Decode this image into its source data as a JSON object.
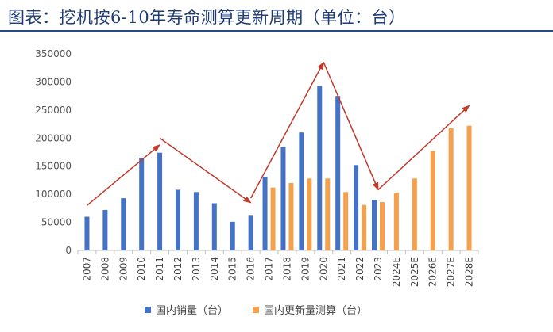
{
  "title": "图表：挖机按6-10年寿命测算更新周期（单位：台）",
  "colors": {
    "domestic": "#4472c4",
    "update": "#f4a04c",
    "arrow": "#c0392b",
    "title": "#1f3b75"
  },
  "chart_data": {
    "type": "bar",
    "categories": [
      "2007",
      "2008",
      "2009",
      "2010",
      "2011",
      "2012",
      "2013",
      "2014",
      "2015",
      "2016",
      "2017",
      "2018",
      "2019",
      "2020",
      "2021",
      "2022",
      "2023",
      "2024E",
      "2025E",
      "2026E",
      "2027E",
      "2028E"
    ],
    "series": [
      {
        "name": "国内销量（台）",
        "values": [
          60000,
          72000,
          93000,
          165000,
          174000,
          108000,
          104000,
          84000,
          51000,
          63000,
          131000,
          184000,
          210000,
          293000,
          275000,
          152000,
          90000,
          null,
          null,
          null,
          null,
          null
        ]
      },
      {
        "name": "国内更新量测算（台）",
        "values": [
          null,
          null,
          null,
          null,
          null,
          null,
          null,
          null,
          null,
          null,
          112000,
          120000,
          128000,
          128000,
          104000,
          81000,
          86000,
          103000,
          128000,
          177000,
          218000,
          222000
        ]
      }
    ],
    "yticks": [
      "0",
      "50000",
      "100000",
      "150000",
      "200000",
      "250000",
      "300000",
      "350000"
    ],
    "ylim": [
      0,
      350000
    ],
    "grid": false,
    "legend": "bottom",
    "trend_arrows": [
      {
        "from": [
          "2007",
          80000
        ],
        "to": [
          "2011",
          188000
        ]
      },
      {
        "from": [
          "2011",
          200000
        ],
        "to": [
          "2016",
          85000
        ]
      },
      {
        "from": [
          "2016",
          93000
        ],
        "to": [
          "2020",
          335000
        ]
      },
      {
        "from": [
          "2020",
          335000
        ],
        "to": [
          "2023",
          108000
        ]
      },
      {
        "from": [
          "2023",
          108000
        ],
        "to": [
          "2028E",
          258000
        ]
      }
    ]
  }
}
